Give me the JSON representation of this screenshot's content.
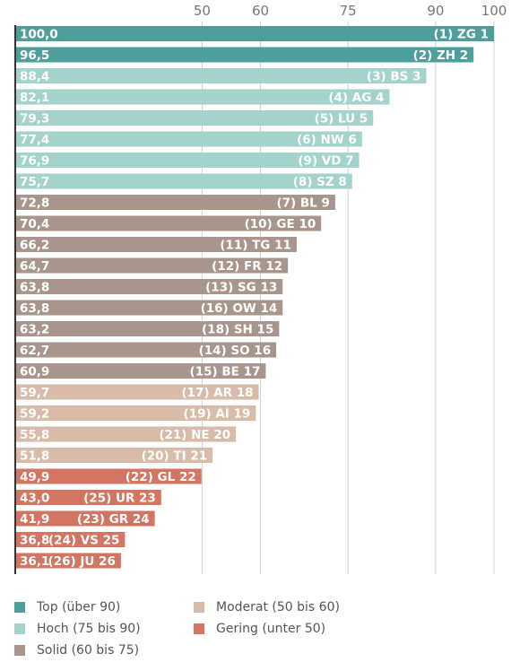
{
  "chart_data": {
    "type": "bar",
    "orientation": "horizontal",
    "x_ticks": [
      50,
      60,
      75,
      90,
      100
    ],
    "xlim": [
      18,
      100
    ],
    "gridlines": "vertical",
    "legend_placement": "bottom",
    "categories": [
      {
        "value_label": "100,0",
        "value": 100.0,
        "rank_label": "(1)",
        "canton": "ZG",
        "position": "1",
        "class": "top"
      },
      {
        "value_label": "96,5",
        "value": 96.5,
        "rank_label": "(2)",
        "canton": "ZH",
        "position": "2",
        "class": "top"
      },
      {
        "value_label": "88,4",
        "value": 88.4,
        "rank_label": "(3)",
        "canton": "BS",
        "position": "3",
        "class": "hoch"
      },
      {
        "value_label": "82,1",
        "value": 82.1,
        "rank_label": "(4)",
        "canton": "AG",
        "position": "4",
        "class": "hoch"
      },
      {
        "value_label": "79,3",
        "value": 79.3,
        "rank_label": "(5)",
        "canton": "LU",
        "position": "5",
        "class": "hoch"
      },
      {
        "value_label": "77,4",
        "value": 77.4,
        "rank_label": "(6)",
        "canton": "NW",
        "position": "6",
        "class": "hoch"
      },
      {
        "value_label": "76,9",
        "value": 76.9,
        "rank_label": "(9)",
        "canton": "VD",
        "position": "7",
        "class": "hoch"
      },
      {
        "value_label": "75,7",
        "value": 75.7,
        "rank_label": "(8)",
        "canton": "SZ",
        "position": "8",
        "class": "hoch"
      },
      {
        "value_label": "72,8",
        "value": 72.8,
        "rank_label": "(7)",
        "canton": "BL",
        "position": "9",
        "class": "solid"
      },
      {
        "value_label": "70,4",
        "value": 70.4,
        "rank_label": "(10)",
        "canton": "GE",
        "position": "10",
        "class": "solid"
      },
      {
        "value_label": "66,2",
        "value": 66.2,
        "rank_label": "(11)",
        "canton": "TG",
        "position": "11",
        "class": "solid"
      },
      {
        "value_label": "64,7",
        "value": 64.7,
        "rank_label": "(12)",
        "canton": "FR",
        "position": "12",
        "class": "solid"
      },
      {
        "value_label": "63,8",
        "value": 63.8,
        "rank_label": "(13)",
        "canton": "SG",
        "position": "13",
        "class": "solid"
      },
      {
        "value_label": "63,8",
        "value": 63.8,
        "rank_label": "(16)",
        "canton": "OW",
        "position": "14",
        "class": "solid"
      },
      {
        "value_label": "63,2",
        "value": 63.2,
        "rank_label": "(18)",
        "canton": "SH",
        "position": "15",
        "class": "solid"
      },
      {
        "value_label": "62,7",
        "value": 62.7,
        "rank_label": "(14)",
        "canton": "SO",
        "position": "16",
        "class": "solid"
      },
      {
        "value_label": "60,9",
        "value": 60.9,
        "rank_label": "(15)",
        "canton": "BE",
        "position": "17",
        "class": "solid"
      },
      {
        "value_label": "59,7",
        "value": 59.7,
        "rank_label": "(17)",
        "canton": "AR",
        "position": "18",
        "class": "moderat"
      },
      {
        "value_label": "59,2",
        "value": 59.2,
        "rank_label": "(19)",
        "canton": "AI",
        "position": "19",
        "class": "moderat"
      },
      {
        "value_label": "55,8",
        "value": 55.8,
        "rank_label": "(21)",
        "canton": "NE",
        "position": "20",
        "class": "moderat"
      },
      {
        "value_label": "51,8",
        "value": 51.8,
        "rank_label": "(20)",
        "canton": "TI",
        "position": "21",
        "class": "moderat"
      },
      {
        "value_label": "49,9",
        "value": 49.9,
        "rank_label": "(22)",
        "canton": "GL",
        "position": "22",
        "class": "gering"
      },
      {
        "value_label": "43,0",
        "value": 43.0,
        "rank_label": "(25)",
        "canton": "UR",
        "position": "23",
        "class": "gering"
      },
      {
        "value_label": "41,9",
        "value": 41.9,
        "rank_label": "(23)",
        "canton": "GR",
        "position": "24",
        "class": "gering"
      },
      {
        "value_label": "36,8",
        "value": 36.8,
        "rank_label": "(24)",
        "canton": "VS",
        "position": "25",
        "class": "gering"
      },
      {
        "value_label": "36,1",
        "value": 36.1,
        "rank_label": "(26)",
        "canton": "JU",
        "position": "26",
        "class": "gering"
      }
    ],
    "classes": {
      "top": {
        "label": "Top (über 90)",
        "color": "#4e9f9c"
      },
      "hoch": {
        "label": "Hoch (75 bis 90)",
        "color": "#a3d3cb"
      },
      "solid": {
        "label": "Solid (60 bis 75)",
        "color": "#a8968c"
      },
      "moderat": {
        "label": "Moderat (50 bis 60)",
        "color": "#d8bba8"
      },
      "gering": {
        "label": "Gering (unter 50)",
        "color": "#d27562"
      }
    },
    "legend_order": [
      "top",
      "moderat",
      "hoch",
      "gering",
      "solid"
    ]
  }
}
